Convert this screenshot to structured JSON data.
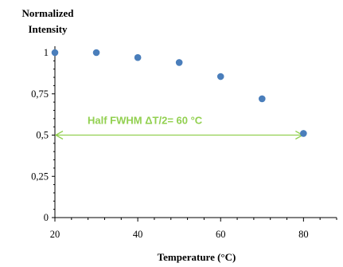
{
  "chart_data": {
    "type": "scatter",
    "ylabel_lines": [
      "Normalized",
      "Intensity"
    ],
    "xlabel": "Temperature (°C)",
    "xlim": [
      20,
      88
    ],
    "ylim": [
      0,
      1
    ],
    "x_ticks": [
      20,
      40,
      60,
      80
    ],
    "x_tick_labels": [
      "20",
      "40",
      "60",
      "80"
    ],
    "y_ticks": [
      0,
      0.25,
      0.5,
      0.75,
      1
    ],
    "y_tick_labels": [
      "0",
      "0,25",
      "0,5",
      "0,75",
      "1"
    ],
    "grid": false,
    "series": [
      {
        "color": "#4a7ebb",
        "points": [
          {
            "x": 20,
            "y": 1.0
          },
          {
            "x": 30,
            "y": 1.0
          },
          {
            "x": 40,
            "y": 0.97
          },
          {
            "x": 50,
            "y": 0.94
          },
          {
            "x": 60,
            "y": 0.855
          },
          {
            "x": 70,
            "y": 0.72
          },
          {
            "x": 80,
            "y": 0.51
          }
        ]
      }
    ],
    "annotation": {
      "text": "Half FWHM ΔT/2= 60 °C",
      "x_start": 20,
      "x_end": 80,
      "y": 0.5,
      "color": "#92d050"
    }
  }
}
